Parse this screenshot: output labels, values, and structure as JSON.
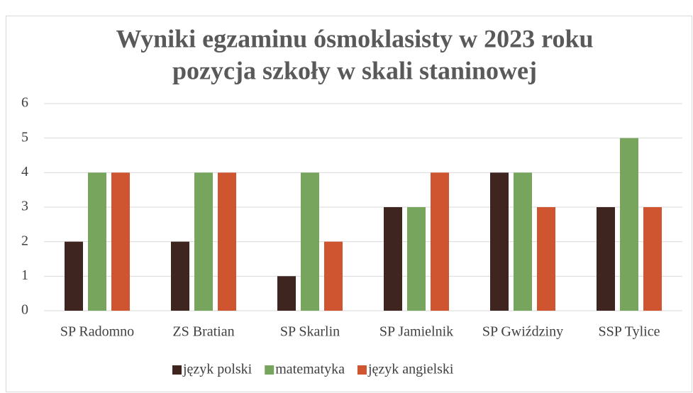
{
  "chart_data": {
    "type": "bar",
    "title_lines": [
      "Wyniki egzaminu ósmoklasisty w 2023 roku",
      "pozycja szkoły w skali staninowej"
    ],
    "categories": [
      "SP Radomno",
      "ZS Bratian",
      "SP Skarlin",
      "SP Jamielnik",
      "SP Gwiździny",
      "SSP Tylice"
    ],
    "series": [
      {
        "name": "język polski",
        "color": "#3f2520",
        "values": [
          2,
          2,
          1,
          3,
          4,
          3
        ]
      },
      {
        "name": "matematyka",
        "color": "#77a55d",
        "values": [
          4,
          4,
          4,
          3,
          4,
          5
        ]
      },
      {
        "name": "język angielski",
        "color": "#cf5530",
        "values": [
          4,
          4,
          2,
          4,
          3,
          3
        ]
      }
    ],
    "ylim": [
      0,
      6
    ],
    "yticks": [
      0,
      1,
      2,
      3,
      4,
      5,
      6
    ],
    "grid": true,
    "legend": "bottom"
  }
}
